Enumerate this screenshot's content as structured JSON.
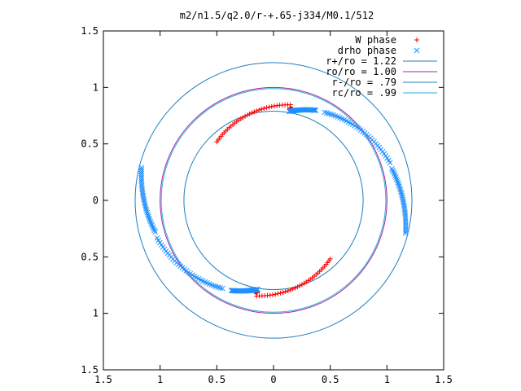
{
  "chart_data": {
    "type": "scatter",
    "title": "m2/n1.5/q2.0/r-+.65-j334/M0.1/512",
    "xlim": [
      -1.5,
      1.5
    ],
    "ylim": [
      -1.5,
      1.5
    ],
    "x_ticks": [
      -1.5,
      -1,
      -0.5,
      0,
      0.5,
      1,
      1.5
    ],
    "y_ticks": [
      -1.5,
      -1,
      -0.5,
      0,
      0.5,
      1,
      1.5
    ],
    "x_tick_labels": [
      "1.5",
      "1",
      "0.5",
      "0",
      "0.5",
      "1",
      "1.5"
    ],
    "y_tick_labels": [
      "1.5",
      "1",
      "0.5",
      "0",
      "0.5",
      "1",
      "1.5"
    ],
    "grid": false,
    "legend_position": "top-right",
    "series": [
      {
        "name": "W phase",
        "kind": "points",
        "marker": "plus",
        "color": "#ff0000",
        "arcs": [
          {
            "radius_start": 0.72,
            "radius_end": 0.86,
            "angle_start_deg": 134,
            "angle_end_deg": 80
          },
          {
            "radius_start": 0.82,
            "radius_end": 0.83,
            "angle_start_deg": 78,
            "angle_end_deg": 80
          },
          {
            "radius_start": 0.72,
            "radius_end": 0.86,
            "angle_start_deg": 314,
            "angle_end_deg": 260
          },
          {
            "radius_start": 0.82,
            "radius_end": 0.83,
            "angle_start_deg": 258,
            "angle_end_deg": 260
          }
        ]
      },
      {
        "name": "drho phase",
        "kind": "points",
        "marker": "cross",
        "color": "#1e90ff",
        "arcs": [
          {
            "radius_start": 0.8,
            "radius_end": 0.88,
            "angle_start_deg": 80,
            "angle_end_deg": 65
          },
          {
            "radius_start": 0.9,
            "radius_end": 1.08,
            "angle_start_deg": 60,
            "angle_end_deg": 18
          },
          {
            "radius_start": 1.08,
            "radius_end": 1.2,
            "angle_start_deg": 15,
            "angle_end_deg": -14
          },
          {
            "radius_start": 0.8,
            "radius_end": 0.88,
            "angle_start_deg": 260,
            "angle_end_deg": 245
          },
          {
            "radius_start": 0.9,
            "radius_end": 1.08,
            "angle_start_deg": 240,
            "angle_end_deg": 198
          },
          {
            "radius_start": 1.08,
            "radius_end": 1.2,
            "angle_start_deg": 195,
            "angle_end_deg": 166
          }
        ]
      },
      {
        "name": "r+/ro = 1.22",
        "kind": "circle",
        "radius": 1.22,
        "color": "#1f7fbf"
      },
      {
        "name": "ro/ro = 1.00",
        "kind": "circle",
        "radius": 1.0,
        "color": "#aa22aa"
      },
      {
        "name": "r-/ro = .79",
        "kind": "circle",
        "radius": 0.79,
        "color": "#1f7fbf"
      },
      {
        "name": "rc/ro = .99",
        "kind": "circle",
        "radius": 0.99,
        "color": "#22b0d0"
      }
    ]
  }
}
